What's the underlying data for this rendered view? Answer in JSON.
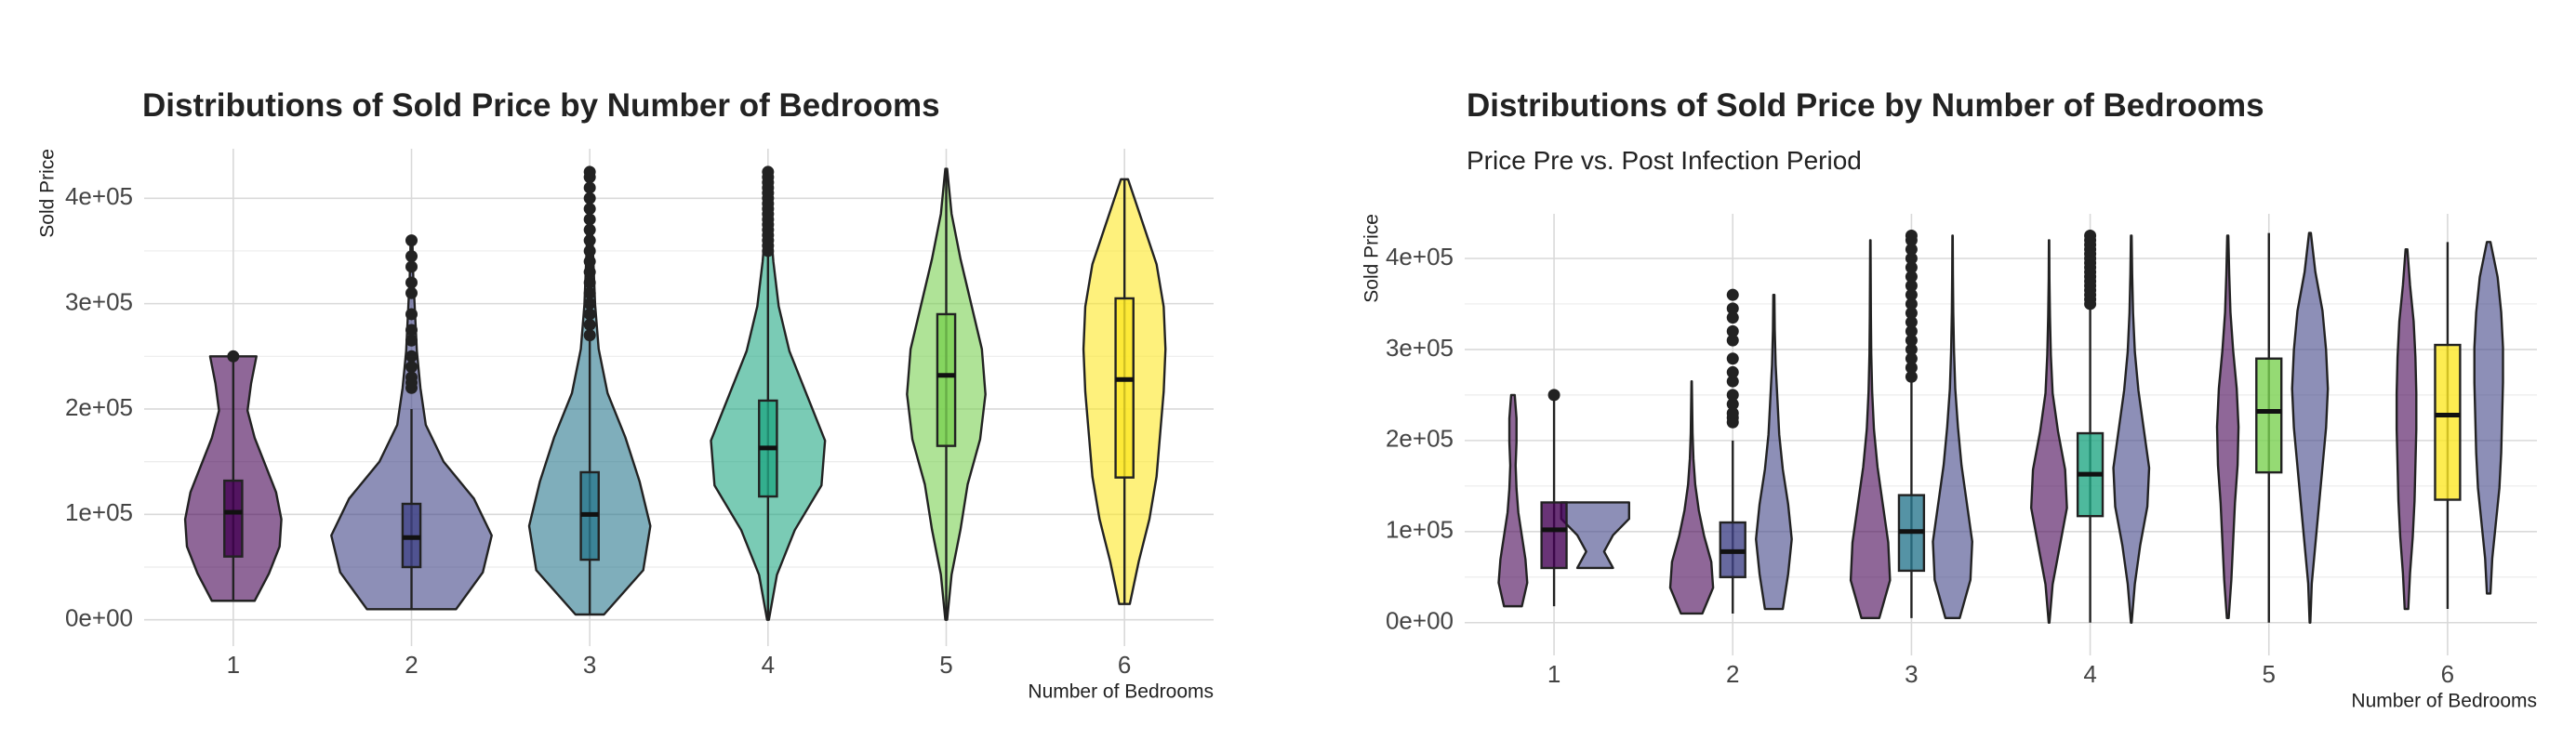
{
  "chart_data": [
    {
      "type": "violin",
      "title": "Distributions of Sold Price by Number of Bedrooms",
      "x_label": "Number of Bedrooms",
      "y_label": "Sold Price",
      "categories": [
        "1",
        "2",
        "3",
        "4",
        "5",
        "6"
      ],
      "colors": [
        "#440154",
        "#414487",
        "#2a788e",
        "#22a884",
        "#7ad151",
        "#fde725"
      ],
      "ylim": [
        -25000,
        447000
      ],
      "yticks": [
        {
          "value": 0,
          "label": "0e+00"
        },
        {
          "value": 100000,
          "label": "1e+05"
        },
        {
          "value": 200000,
          "label": "2e+05"
        },
        {
          "value": 300000,
          "label": "3e+05"
        },
        {
          "value": 400000,
          "label": "4e+05"
        }
      ],
      "grid": true,
      "minor_grid": true,
      "violin_sets": [
        {
          "violins": [
            {
              "min": 18000,
              "max": 250000,
              "density": [
                0.12,
                0.2,
                0.26,
                0.27,
                0.24,
                0.18,
                0.12,
                0.08,
                0.1,
                0.13
              ]
            },
            {
              "min": 10000,
              "max": 360000,
              "density": [
                0.25,
                0.4,
                0.45,
                0.35,
                0.18,
                0.08,
                0.05,
                0.03,
                0.02,
                0.01,
                0.005
              ]
            },
            {
              "min": 5000,
              "max": 425000,
              "density": [
                0.08,
                0.3,
                0.34,
                0.28,
                0.2,
                0.1,
                0.05,
                0.03,
                0.02,
                0.01,
                0.005
              ]
            },
            {
              "min": 0,
              "max": 425000,
              "density": [
                0.005,
                0.05,
                0.15,
                0.3,
                0.32,
                0.22,
                0.12,
                0.06,
                0.03,
                0.01,
                0.005
              ]
            },
            {
              "min": 0,
              "max": 428000,
              "density": [
                0.005,
                0.03,
                0.08,
                0.12,
                0.19,
                0.22,
                0.2,
                0.14,
                0.08,
                0.03,
                0.005
              ]
            },
            {
              "min": 15000,
              "max": 418000,
              "density": [
                0.03,
                0.08,
                0.14,
                0.18,
                0.2,
                0.22,
                0.23,
                0.22,
                0.18,
                0.1,
                0.02
              ]
            }
          ]
        }
      ],
      "boxes": [
        {
          "min": 18000,
          "q1": 60000,
          "median": 102000,
          "q3": 132000,
          "max": 248000
        },
        {
          "min": 10000,
          "q1": 50000,
          "median": 78000,
          "q3": 110000,
          "max": 200000
        },
        {
          "min": 5000,
          "q1": 57000,
          "median": 100000,
          "q3": 140000,
          "max": 265000
        },
        {
          "min": 0,
          "q1": 117000,
          "median": 163000,
          "q3": 208000,
          "max": 345000
        },
        {
          "min": 0,
          "q1": 165000,
          "median": 232000,
          "q3": 290000,
          "max": 428000
        },
        {
          "min": 15000,
          "q1": 135000,
          "median": 228000,
          "q3": 305000,
          "max": 418000
        }
      ],
      "outliers": [
        [
          250000
        ],
        [
          220000,
          225000,
          230000,
          240000,
          250000,
          265000,
          275000,
          290000,
          310000,
          320000,
          335000,
          345000,
          360000
        ],
        [
          270000,
          280000,
          290000,
          300000,
          310000,
          320000,
          330000,
          340000,
          350000,
          360000,
          370000,
          380000,
          390000,
          400000,
          410000,
          420000,
          425000
        ],
        [
          350000,
          355000,
          360000,
          365000,
          370000,
          375000,
          380000,
          385000,
          390000,
          395000,
          400000,
          405000,
          410000,
          415000,
          420000,
          425000
        ],
        [],
        []
      ]
    },
    {
      "type": "violin",
      "title": "Distributions of Sold Price by Number of Bedrooms",
      "subtitle": "Price Pre vs. Post Infection Period",
      "x_label": "Number of Bedrooms",
      "y_label": "Sold Price",
      "categories": [
        "1",
        "2",
        "3",
        "4",
        "5",
        "6"
      ],
      "colors": [
        "#440154",
        "#414487",
        "#2a788e",
        "#22a884",
        "#7ad151",
        "#fde725"
      ],
      "ylim": [
        -36000,
        449000
      ],
      "yticks": [
        {
          "value": 0,
          "label": "0e+00"
        },
        {
          "value": 100000,
          "label": "1e+05"
        },
        {
          "value": 200000,
          "label": "2e+05"
        },
        {
          "value": 300000,
          "label": "3e+05"
        },
        {
          "value": 400000,
          "label": "4e+05"
        }
      ],
      "grid": true,
      "minor_grid": true,
      "violin_sets": [
        {
          "color": "#440154",
          "violins": [
            {
              "min": 18000,
              "max": 250000,
              "density": [
                0.05,
                0.08,
                0.07,
                0.05,
                0.03,
                0.02,
                0.015,
                0.02,
                0.02,
                0.01
              ]
            },
            {
              "min": 10000,
              "max": 265000,
              "density": [
                0.06,
                0.12,
                0.11,
                0.07,
                0.04,
                0.02,
                0.01,
                0.005,
                0.003,
                0.001
              ]
            },
            {
              "min": 5000,
              "max": 420000,
              "density": [
                0.05,
                0.11,
                0.1,
                0.07,
                0.04,
                0.02,
                0.01,
                0.005,
                0.003,
                0.002,
                0.001
              ]
            },
            {
              "min": 0,
              "max": 420000,
              "density": [
                0.002,
                0.02,
                0.06,
                0.1,
                0.09,
                0.05,
                0.02,
                0.01,
                0.005,
                0.002,
                0.001
              ]
            },
            {
              "min": 5000,
              "max": 425000,
              "density": [
                0.005,
                0.02,
                0.03,
                0.04,
                0.055,
                0.06,
                0.05,
                0.03,
                0.015,
                0.008,
                0.003
              ]
            },
            {
              "min": 15000,
              "max": 410000,
              "density": [
                0.01,
                0.02,
                0.035,
                0.045,
                0.05,
                0.055,
                0.055,
                0.05,
                0.04,
                0.02,
                0.005
              ]
            }
          ]
        },
        {
          "color": "#414487",
          "violins": [
            {
              "min": 60000,
              "max": 132000,
              "density": [
                0.1,
                0.05,
                0.1,
                0.19,
                0.19
              ]
            },
            {
              "min": 15000,
              "max": 360000,
              "density": [
                0.05,
                0.08,
                0.1,
                0.08,
                0.05,
                0.03,
                0.02,
                0.01,
                0.005,
                0.003
              ]
            },
            {
              "min": 5000,
              "max": 425000,
              "density": [
                0.04,
                0.1,
                0.11,
                0.08,
                0.05,
                0.03,
                0.015,
                0.008,
                0.004,
                0.002,
                0.001
              ]
            },
            {
              "min": 0,
              "max": 425000,
              "density": [
                0.002,
                0.02,
                0.05,
                0.09,
                0.1,
                0.07,
                0.04,
                0.02,
                0.01,
                0.005,
                0.002
              ]
            },
            {
              "min": 0,
              "max": 428000,
              "density": [
                0.002,
                0.01,
                0.03,
                0.05,
                0.07,
                0.09,
                0.1,
                0.09,
                0.07,
                0.03,
                0.005
              ]
            },
            {
              "min": 32000,
              "max": 418000,
              "density": [
                0.01,
                0.02,
                0.04,
                0.06,
                0.07,
                0.075,
                0.08,
                0.08,
                0.07,
                0.05,
                0.01
              ]
            }
          ]
        }
      ],
      "boxes": [
        {
          "min": 18000,
          "q1": 60000,
          "median": 102000,
          "q3": 132000,
          "max": 248000
        },
        {
          "min": 10000,
          "q1": 50000,
          "median": 78000,
          "q3": 110000,
          "max": 200000
        },
        {
          "min": 5000,
          "q1": 57000,
          "median": 100000,
          "q3": 140000,
          "max": 265000
        },
        {
          "min": 0,
          "q1": 117000,
          "median": 163000,
          "q3": 208000,
          "max": 345000
        },
        {
          "min": 0,
          "q1": 165000,
          "median": 232000,
          "q3": 290000,
          "max": 428000
        },
        {
          "min": 15000,
          "q1": 135000,
          "median": 228000,
          "q3": 305000,
          "max": 418000
        }
      ],
      "outliers": [
        [
          250000
        ],
        [
          220000,
          225000,
          230000,
          240000,
          250000,
          265000,
          275000,
          290000,
          310000,
          320000,
          335000,
          345000,
          360000
        ],
        [
          270000,
          280000,
          290000,
          300000,
          310000,
          320000,
          330000,
          340000,
          350000,
          360000,
          370000,
          380000,
          390000,
          400000,
          410000,
          420000,
          425000
        ],
        [
          350000,
          355000,
          360000,
          365000,
          370000,
          375000,
          380000,
          385000,
          390000,
          395000,
          400000,
          405000,
          410000,
          415000,
          420000,
          425000
        ],
        [],
        []
      ]
    }
  ]
}
